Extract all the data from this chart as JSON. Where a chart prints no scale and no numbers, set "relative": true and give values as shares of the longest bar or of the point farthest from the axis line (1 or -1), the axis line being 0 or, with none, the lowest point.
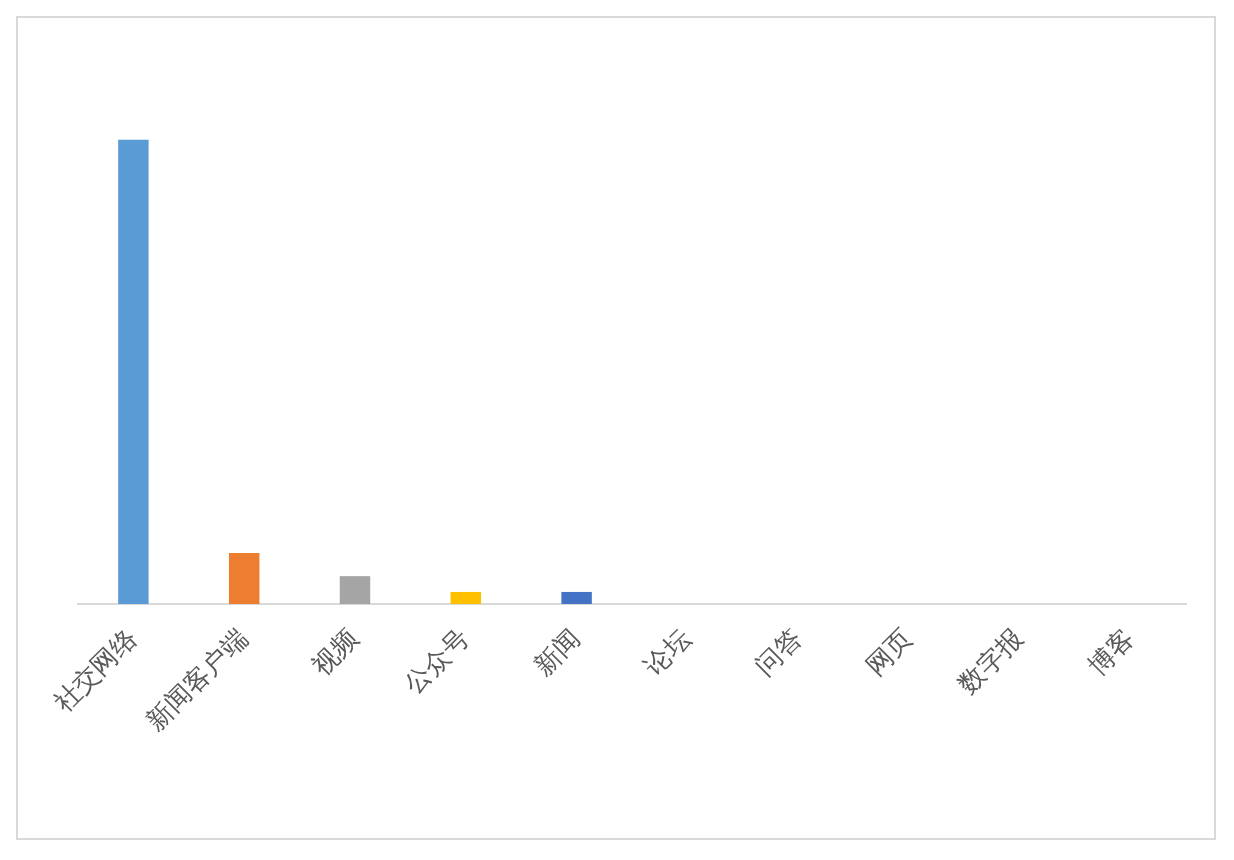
{
  "chart_data": {
    "type": "bar",
    "relative": true,
    "categories": [
      "社交网络",
      "新闻客户端",
      "视频",
      "公众号",
      "新闻",
      "论坛",
      "问答",
      "网页",
      "数字报",
      "博客"
    ],
    "values": [
      1,
      0.11,
      0.06,
      0.026,
      0.026,
      0,
      0,
      0,
      0,
      0
    ],
    "colors": [
      "#5b9bd5",
      "#ed7d31",
      "#a5a5a5",
      "#ffc000",
      "#4472c4",
      "#70ad47",
      "#255e91",
      "#9e480e",
      "#636363",
      "#997300"
    ],
    "grid": false,
    "legend": false
  }
}
